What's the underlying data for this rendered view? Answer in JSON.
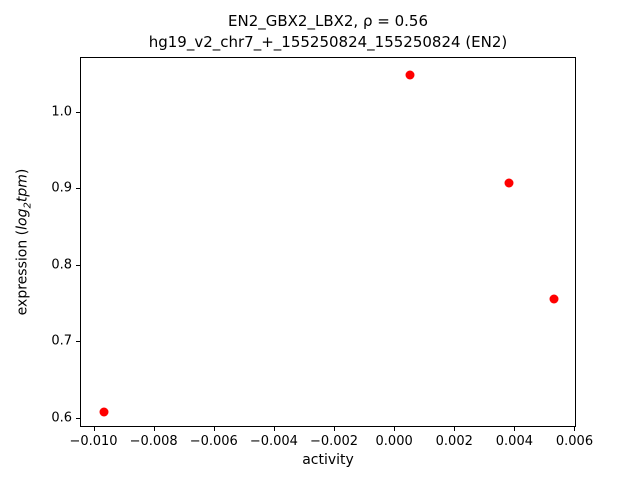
{
  "title": {
    "line1": "EN2_GBX2_LBX2, ρ = 0.56",
    "line2": "hg19_v2_chr7_+_155250824_155250824 (EN2)"
  },
  "axis_labels": {
    "x": "activity",
    "y_prefix": "expression (",
    "y_log": "log",
    "y_sub": "2",
    "y_var": "tpm",
    "y_close": ")"
  },
  "chart_data": {
    "type": "scatter",
    "x": [
      -0.0097,
      0.0005,
      0.0038,
      0.0053
    ],
    "y": [
      0.609,
      1.05,
      0.908,
      0.757
    ],
    "title": "EN2_GBX2_LBX2, ρ = 0.56 — hg19_v2_chr7_+_155250824_155250824 (EN2)",
    "xlabel": "activity",
    "ylabel": "expression (log2 tpm)",
    "xlim": [
      -0.01045,
      0.00605
    ],
    "ylim": [
      0.588,
      1.072
    ],
    "xticks": [
      -0.01,
      -0.008,
      -0.006,
      -0.004,
      -0.002,
      0.0,
      0.002,
      0.004,
      0.006
    ],
    "yticks": [
      0.6,
      0.7,
      0.8,
      0.9,
      1.0
    ],
    "marker_color": "#ff0000",
    "grid": false,
    "legend": null
  }
}
